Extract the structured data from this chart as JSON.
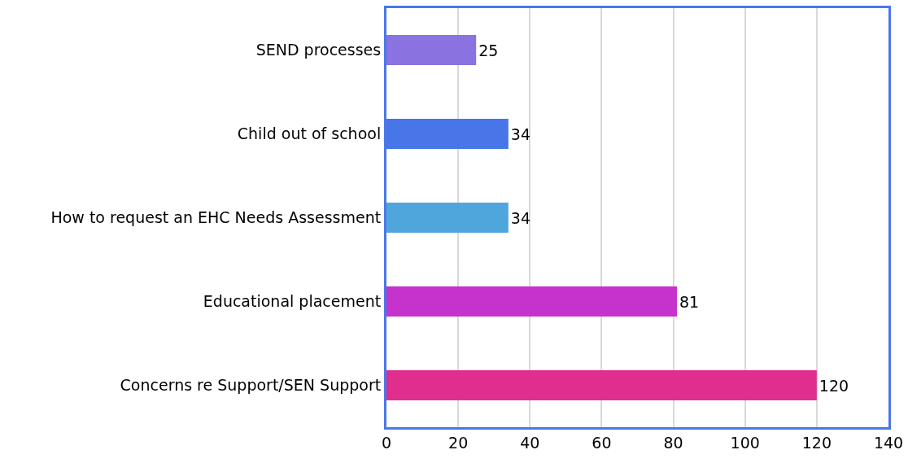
{
  "chart_data": {
    "type": "bar",
    "orientation": "horizontal",
    "categories": [
      "SEND processes",
      "Child out of school",
      "How to request an EHC Needs Assessment",
      "Educational placement",
      "Concerns re Support/SEN Support"
    ],
    "values": [
      25,
      34,
      34,
      81,
      120
    ],
    "colors": [
      "#8a72e0",
      "#4875e8",
      "#4fa6dc",
      "#c532cc",
      "#e02e8e"
    ],
    "xlim": [
      0,
      140
    ],
    "xticks": [
      0,
      20,
      40,
      60,
      80,
      100,
      120,
      140
    ],
    "grid": "x",
    "data_labels": true
  }
}
